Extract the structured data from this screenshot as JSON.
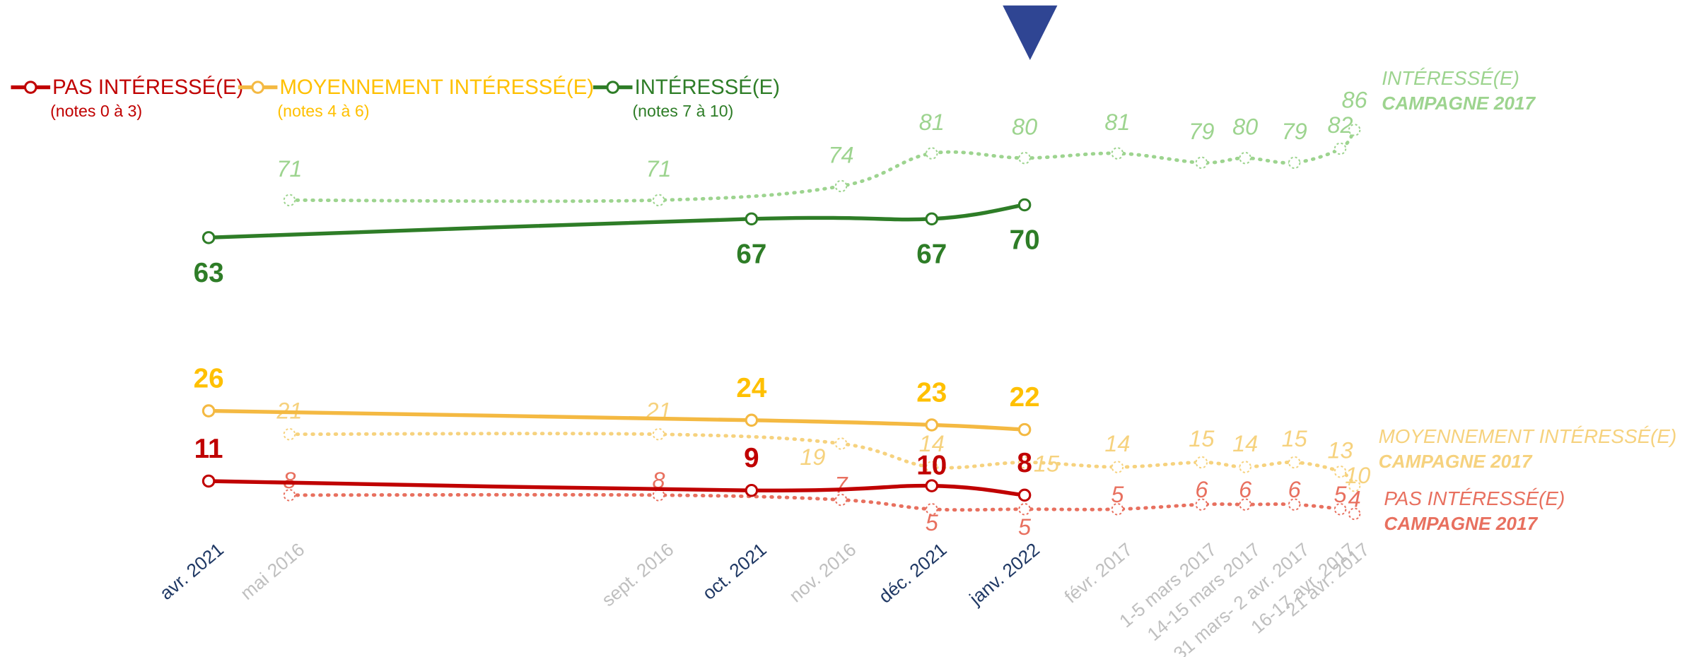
{
  "chart_data": {
    "type": "line",
    "ylim": [
      0,
      100
    ],
    "current": {
      "categories": [
        "avr. 2021",
        "oct. 2021",
        "déc. 2021",
        "janv. 2022"
      ],
      "series": [
        {
          "name": "PAS INTÉRESSÉ(E)",
          "note": "(notes 0 à 3)",
          "color": "#c00000",
          "label_color": "#c00000",
          "values": [
            11,
            9,
            10,
            8
          ]
        },
        {
          "name": "MOYENNEMENT INTÉRESSÉ(E)",
          "note": "(notes 4 à 6)",
          "color": "#f4b942",
          "label_color": "#ffc000",
          "values": [
            26,
            24,
            23,
            22
          ]
        },
        {
          "name": "INTÉRESSÉ(E)",
          "note": "(notes 7 à 10)",
          "color": "#2e7d27",
          "label_color": "#2e7d27",
          "values": [
            63,
            67,
            67,
            70
          ]
        }
      ]
    },
    "campaign_2017": {
      "title": "CAMPAGNE 2017",
      "categories": [
        "mai 2016",
        "sept. 2016",
        "nov. 2016",
        null,
        null,
        "févr. 2017",
        "1-5 mars 2017",
        "14-15 mars 2017",
        "31 mars- 2 avr. 2017",
        "16-17 avr. 2017",
        "21 avr. 2017"
      ],
      "series": [
        {
          "name": "PAS INTÉRESSÉ(E)",
          "color": "#e8705f",
          "values": [
            8,
            8,
            7,
            5,
            5,
            5,
            6,
            6,
            6,
            5,
            4
          ]
        },
        {
          "name": "MOYENNEMENT INTÉRESSÉ(E)",
          "color": "#f6d27e",
          "values": [
            21,
            21,
            19,
            14,
            15,
            14,
            15,
            14,
            15,
            13,
            10
          ]
        },
        {
          "name": "INTÉRESSÉ(E)",
          "color": "#9dd48f",
          "values": [
            71,
            71,
            74,
            81,
            80,
            81,
            79,
            80,
            79,
            82,
            86
          ]
        }
      ]
    }
  }
}
